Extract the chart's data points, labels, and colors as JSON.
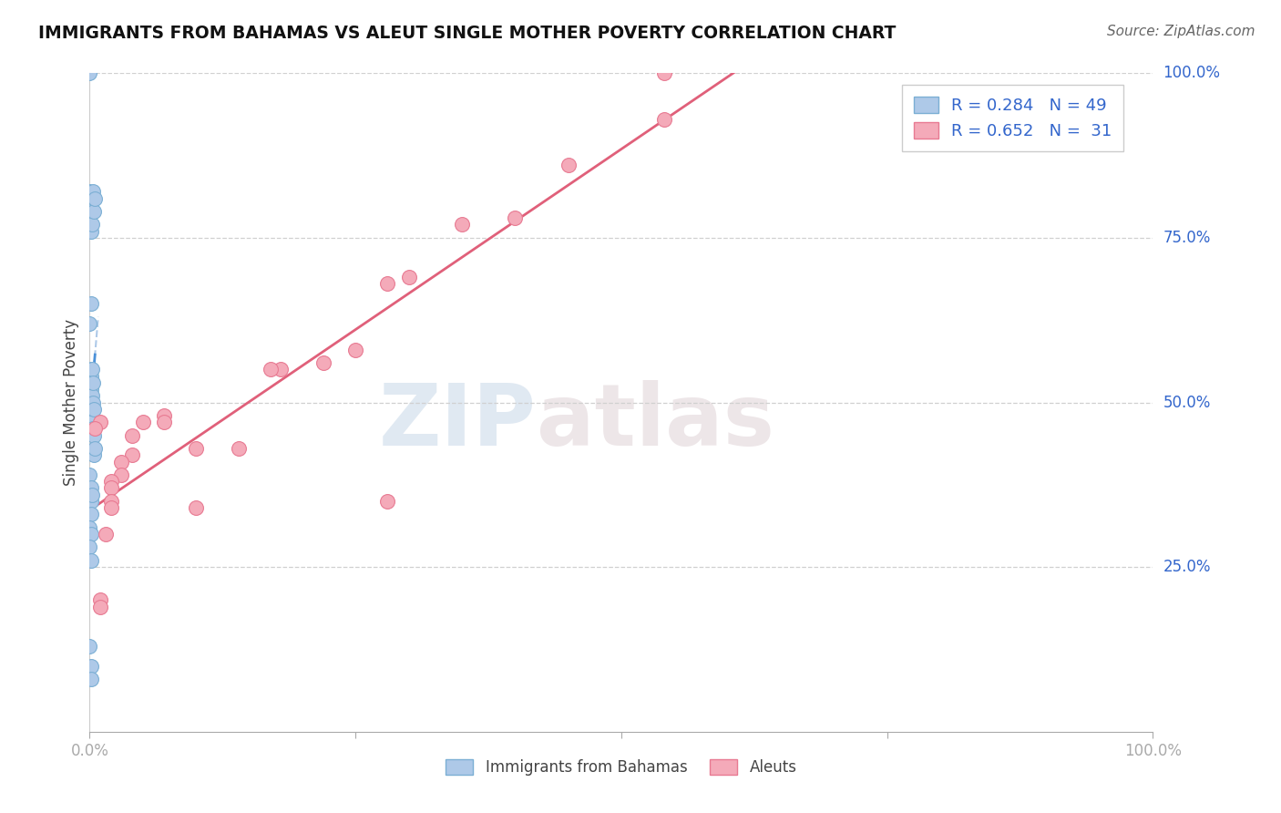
{
  "title": "IMMIGRANTS FROM BAHAMAS VS ALEUT SINGLE MOTHER POVERTY CORRELATION CHART",
  "source": "Source: ZipAtlas.com",
  "ylabel": "Single Mother Poverty",
  "legend1_label": "Immigrants from Bahamas",
  "legend2_label": "Aleuts",
  "R1": 0.284,
  "N1": 49,
  "R2": 0.652,
  "N2": 31,
  "blue_color": "#aec9e8",
  "blue_edge": "#7bafd4",
  "pink_color": "#f4aab9",
  "pink_edge": "#e87a92",
  "blue_line_color": "#4a90d9",
  "pink_line_color": "#e0607a",
  "blue_dashed_color": "#aec9e8",
  "watermark_color": "#dce8f2",
  "grid_color": "#d0d0d0",
  "blue_scatter_x": [
    0.0,
    0.0,
    0.0,
    0.0,
    0.0,
    0.0,
    0.0,
    0.0,
    0.0,
    0.0,
    0.001,
    0.001,
    0.001,
    0.001,
    0.001,
    0.001,
    0.001,
    0.001,
    0.001,
    0.001,
    0.001,
    0.001,
    0.002,
    0.002,
    0.002,
    0.002,
    0.002,
    0.003,
    0.003,
    0.003,
    0.003,
    0.004,
    0.004,
    0.004,
    0.004,
    0.005,
    0.005,
    0.0,
    0.001,
    0.001,
    0.001,
    0.002,
    0.0,
    0.001,
    0.0,
    0.001,
    0.0,
    0.001,
    0.001
  ],
  "blue_scatter_y": [
    1.0,
    0.82,
    0.81,
    0.62,
    0.51,
    0.5,
    0.49,
    0.48,
    0.47,
    0.46,
    0.79,
    0.76,
    0.65,
    0.55,
    0.54,
    0.53,
    0.52,
    0.51,
    0.5,
    0.49,
    0.48,
    0.47,
    0.77,
    0.55,
    0.51,
    0.49,
    0.47,
    0.82,
    0.53,
    0.5,
    0.46,
    0.79,
    0.49,
    0.45,
    0.42,
    0.81,
    0.43,
    0.39,
    0.37,
    0.35,
    0.33,
    0.36,
    0.31,
    0.3,
    0.28,
    0.26,
    0.13,
    0.1,
    0.08
  ],
  "pink_scatter_x": [
    0.54,
    0.54,
    0.45,
    0.4,
    0.35,
    0.3,
    0.28,
    0.28,
    0.25,
    0.22,
    0.18,
    0.17,
    0.14,
    0.1,
    0.1,
    0.07,
    0.07,
    0.05,
    0.04,
    0.04,
    0.03,
    0.03,
    0.02,
    0.02,
    0.02,
    0.02,
    0.015,
    0.01,
    0.01,
    0.01,
    0.005
  ],
  "pink_scatter_y": [
    1.0,
    0.93,
    0.86,
    0.78,
    0.77,
    0.69,
    0.68,
    0.35,
    0.58,
    0.56,
    0.55,
    0.55,
    0.43,
    0.43,
    0.34,
    0.48,
    0.47,
    0.47,
    0.45,
    0.42,
    0.41,
    0.39,
    0.38,
    0.37,
    0.35,
    0.34,
    0.3,
    0.2,
    0.19,
    0.47,
    0.46
  ]
}
